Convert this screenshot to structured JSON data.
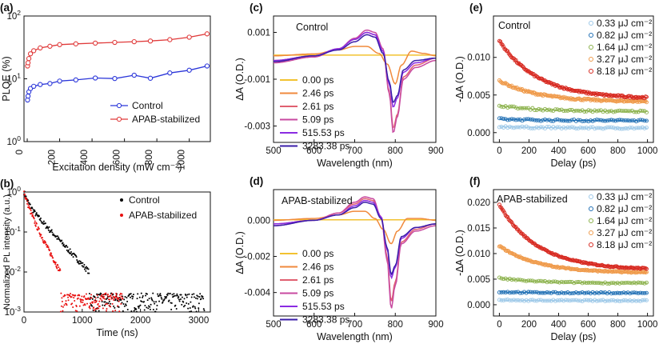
{
  "chart_data": [
    {
      "panel": "(a)",
      "type": "line",
      "y_scale": "log",
      "xlabel": "Excitation density (mW cm⁻²)",
      "ylabel": "PLQE (%)",
      "xlim": [
        -20,
        1130
      ],
      "ylim": [
        1,
        100
      ],
      "xticks": [
        "0",
        "200",
        "400",
        "600",
        "800",
        "1000"
      ],
      "yticks": [
        {
          "base": "10",
          "exp": "0"
        },
        {
          "base": "10",
          "exp": "1"
        },
        {
          "base": "10",
          "exp": "2"
        }
      ],
      "legend_position": "bottom-right",
      "series": [
        {
          "name": "Control",
          "color": "#2b36d9",
          "x": [
            2,
            5,
            10,
            20,
            40,
            80,
            140,
            200,
            300,
            420,
            540,
            660,
            760,
            880,
            1000,
            1110
          ],
          "y": [
            4.6,
            5.3,
            6.2,
            7.0,
            7.6,
            8.1,
            8.4,
            9.2,
            9.6,
            10.3,
            10.1,
            11.4,
            10.2,
            12.4,
            13.7,
            16.0
          ]
        },
        {
          "name": "APAB-stabilized",
          "color": "#e03a3a",
          "x": [
            2,
            5,
            10,
            20,
            40,
            80,
            140,
            200,
            300,
            420,
            540,
            660,
            760,
            880,
            1000,
            1110
          ],
          "y": [
            16,
            18,
            21,
            25,
            28,
            31,
            33,
            35,
            36,
            37,
            38,
            39,
            40,
            42,
            46,
            52
          ]
        }
      ]
    },
    {
      "panel": "(b)",
      "type": "scatter",
      "y_scale": "log",
      "xlabel": "Time (ns)",
      "ylabel": "Normalized PL intensity (a.u.)",
      "xlim": [
        0,
        3200
      ],
      "ylim": [
        0.001,
        1
      ],
      "xticks": [
        "0",
        "1000",
        "2000",
        "3000"
      ],
      "yticks": [
        {
          "base": "10",
          "exp": "-3"
        },
        {
          "base": "10",
          "exp": "-2"
        },
        {
          "base": "10",
          "exp": "-1"
        },
        {
          "base": "10",
          "exp": "0"
        }
      ],
      "legend_position": "top-right",
      "series": [
        {
          "name": "Control",
          "color": "#000000",
          "decay_tau_ns": [
            60,
            280
          ],
          "decay_amp": [
            0.45,
            0.55
          ],
          "x_end": 3100
        },
        {
          "name": "APAB-stabilized",
          "color": "#e81010",
          "decay_tau_ns": [
            60,
            160
          ],
          "decay_amp": [
            0.5,
            0.5
          ],
          "x_end": 1700
        }
      ]
    },
    {
      "panel": "(c)",
      "type": "line",
      "title": "Control",
      "xlabel": "Wavelength (nm)",
      "ylabel": "ΔA (O.D.)",
      "xlim": [
        500,
        900
      ],
      "ylim": [
        -0.0037,
        0.0017
      ],
      "xticks": [
        "500",
        "600",
        "700",
        "800",
        "900"
      ],
      "yticks": [
        "0.001",
        "-0.001",
        "-0.003"
      ],
      "legend_position": "bottom-left",
      "series": [
        {
          "name": "0.00 ps",
          "color": "#f2c230",
          "x": [
            500,
            900
          ],
          "y": [
            3e-05,
            3e-05
          ]
        },
        {
          "name": "2.46 ps",
          "color": "#f08a3c",
          "x": [
            500,
            600,
            660,
            700,
            730,
            760,
            780,
            800,
            815,
            840,
            870,
            900
          ],
          "y": [
            0,
            8e-05,
            0.00025,
            0.0004,
            0.0004,
            0.0001,
            -0.00035,
            -0.0012,
            -0.0004,
            0.0002,
            0.0001,
            0
          ]
        },
        {
          "name": "2.61 ps",
          "color": "#e06070",
          "x": [
            500,
            600,
            660,
            700,
            730,
            750,
            770,
            785,
            795,
            805,
            820,
            850,
            900
          ],
          "y": [
            -0.0002,
            0,
            0.0003,
            0.0007,
            0.001,
            0.0009,
            0.0002,
            -0.0015,
            -0.0031,
            -0.0025,
            -0.0009,
            -0.0004,
            -0.0001
          ]
        },
        {
          "name": "5.09 ps",
          "color": "#c84aa0",
          "x": [
            500,
            600,
            660,
            700,
            730,
            750,
            770,
            785,
            795,
            805,
            820,
            850,
            900
          ],
          "y": [
            -0.0003,
            -5e-05,
            0.0003,
            0.00075,
            0.0011,
            0.001,
            0.0003,
            -0.0016,
            -0.0033,
            -0.0026,
            -0.001,
            -0.0005,
            -0.0002
          ]
        },
        {
          "name": "515.53 ps",
          "color": "#8a2be2",
          "x": [
            500,
            600,
            660,
            700,
            730,
            750,
            770,
            785,
            795,
            805,
            820,
            850,
            900
          ],
          "y": [
            -0.0002,
            0,
            0.0003,
            0.0007,
            0.001,
            0.0009,
            0.0002,
            -0.0012,
            -0.0022,
            -0.0018,
            -0.0007,
            -0.0003,
            -0.0001
          ]
        },
        {
          "name": "3283.38 ps",
          "color": "#3a1ea8",
          "x": [
            500,
            600,
            660,
            700,
            730,
            750,
            770,
            785,
            795,
            805,
            820,
            850,
            900
          ],
          "y": [
            -0.00025,
            0,
            0.00025,
            0.0006,
            0.0009,
            0.0008,
            0.0001,
            -0.0011,
            -0.002,
            -0.0017,
            -0.0006,
            -0.0002,
            -0.0001
          ]
        }
      ]
    },
    {
      "panel": "(d)",
      "type": "line",
      "title": "APAB-stabilized",
      "xlabel": "Wavelength (nm)",
      "ylabel": "ΔA (O.D.)",
      "xlim": [
        500,
        900
      ],
      "ylim": [
        -0.0053,
        0.0017
      ],
      "xticks": [
        "500",
        "600",
        "700",
        "800",
        "900"
      ],
      "yticks": [
        "0.000",
        "-0.002",
        "-0.004"
      ],
      "legend_position": "bottom-left",
      "series": [
        {
          "name": "0.00 ps",
          "color": "#f2c230",
          "x": [
            500,
            900
          ],
          "y": [
            3e-05,
            3e-05
          ]
        },
        {
          "name": "2.46 ps",
          "color": "#f08a3c",
          "x": [
            500,
            600,
            660,
            700,
            725,
            750,
            770,
            790,
            805,
            830,
            860,
            900
          ],
          "y": [
            0,
            0.0001,
            0.0003,
            0.0005,
            0.0005,
            0.0001,
            -0.0005,
            -0.0013,
            -0.0006,
            0.0001,
            0.0001,
            0
          ]
        },
        {
          "name": "2.61 ps",
          "color": "#e06070",
          "x": [
            500,
            600,
            660,
            700,
            725,
            745,
            765,
            780,
            790,
            800,
            815,
            850,
            900
          ],
          "y": [
            -0.0002,
            0,
            0.0004,
            0.0009,
            0.0012,
            0.0011,
            0.0002,
            -0.002,
            -0.0045,
            -0.0034,
            -0.0012,
            -0.0005,
            -0.0002
          ]
        },
        {
          "name": "5.09 ps",
          "color": "#c84aa0",
          "x": [
            500,
            600,
            660,
            700,
            725,
            745,
            765,
            780,
            790,
            800,
            815,
            850,
            900
          ],
          "y": [
            -0.0003,
            0,
            0.0004,
            0.001,
            0.0013,
            0.0012,
            0.0002,
            -0.0022,
            -0.0049,
            -0.0036,
            -0.0013,
            -0.0006,
            -0.0003
          ]
        },
        {
          "name": "515.53 ps",
          "color": "#8a2be2",
          "x": [
            500,
            600,
            660,
            700,
            725,
            745,
            765,
            780,
            790,
            800,
            815,
            850,
            900
          ],
          "y": [
            -0.0002,
            0,
            0.0003,
            0.0008,
            0.0011,
            0.001,
            0.0002,
            -0.0016,
            -0.0032,
            -0.0026,
            -0.001,
            -0.0004,
            -0.0002
          ]
        },
        {
          "name": "3283.38 ps",
          "color": "#3a1ea8",
          "x": [
            500,
            600,
            660,
            700,
            725,
            745,
            765,
            780,
            790,
            800,
            815,
            850,
            900
          ],
          "y": [
            -0.0003,
            0,
            0.0003,
            0.0007,
            0.001,
            0.0009,
            0.0001,
            -0.0015,
            -0.003,
            -0.0025,
            -0.0009,
            -0.0004,
            -0.0002
          ]
        }
      ]
    },
    {
      "panel": "(e)",
      "type": "scatter",
      "title": "Control",
      "xlabel": "Delay (ps)",
      "ylabel": "-ΔA (O.D.)",
      "xlim": [
        -40,
        1040
      ],
      "ylim": [
        -0.0013,
        0.0155
      ],
      "xticks": [
        "0",
        "200",
        "400",
        "600",
        "800",
        "1000"
      ],
      "yticks": [
        "0.000",
        "0.005",
        "0.010"
      ],
      "legend_position": "top-right",
      "series": [
        {
          "name": "0.33 μJ cm⁻²",
          "color": "#9cc8e8",
          "y_start": 0.0008,
          "y_end": 0.0006
        },
        {
          "name": "0.82 μJ cm⁻²",
          "color": "#1f6fb4",
          "y_start": 0.0018,
          "y_end": 0.0016
        },
        {
          "name": "1.64 μJ cm⁻²",
          "color": "#8ab14a",
          "y_start": 0.0036,
          "y_end": 0.0028
        },
        {
          "name": "3.27 μJ cm⁻²",
          "color": "#ef9a4a",
          "y_start": 0.0069,
          "y_end": 0.0041
        },
        {
          "name": "8.18 μJ cm⁻²",
          "color": "#d7281f",
          "y_start": 0.0122,
          "y_end": 0.0045
        }
      ]
    },
    {
      "panel": "(f)",
      "type": "scatter",
      "title": "APAB-stabilized",
      "xlabel": "Delay (ps)",
      "ylabel": "-ΔA (O.D.)",
      "xlim": [
        -40,
        1040
      ],
      "ylim": [
        -0.0022,
        0.0225
      ],
      "xticks": [
        "0",
        "200",
        "400",
        "600",
        "800",
        "1000"
      ],
      "yticks": [
        "0.000",
        "0.005",
        "0.010",
        "0.015",
        "0.020"
      ],
      "legend_position": "top-right",
      "series": [
        {
          "name": "0.33 μJ cm⁻²",
          "color": "#9cc8e8",
          "y_start": 0.0009,
          "y_end": 0.0008
        },
        {
          "name": "0.82 μJ cm⁻²",
          "color": "#1f6fb4",
          "y_start": 0.0025,
          "y_end": 0.0023
        },
        {
          "name": "1.64 μJ cm⁻²",
          "color": "#8ab14a",
          "y_start": 0.0052,
          "y_end": 0.0042
        },
        {
          "name": "3.27 μJ cm⁻²",
          "color": "#ef9a4a",
          "y_start": 0.0115,
          "y_end": 0.0062
        },
        {
          "name": "8.18 μJ cm⁻²",
          "color": "#d7281f",
          "y_start": 0.0195,
          "y_end": 0.0068
        }
      ]
    }
  ]
}
